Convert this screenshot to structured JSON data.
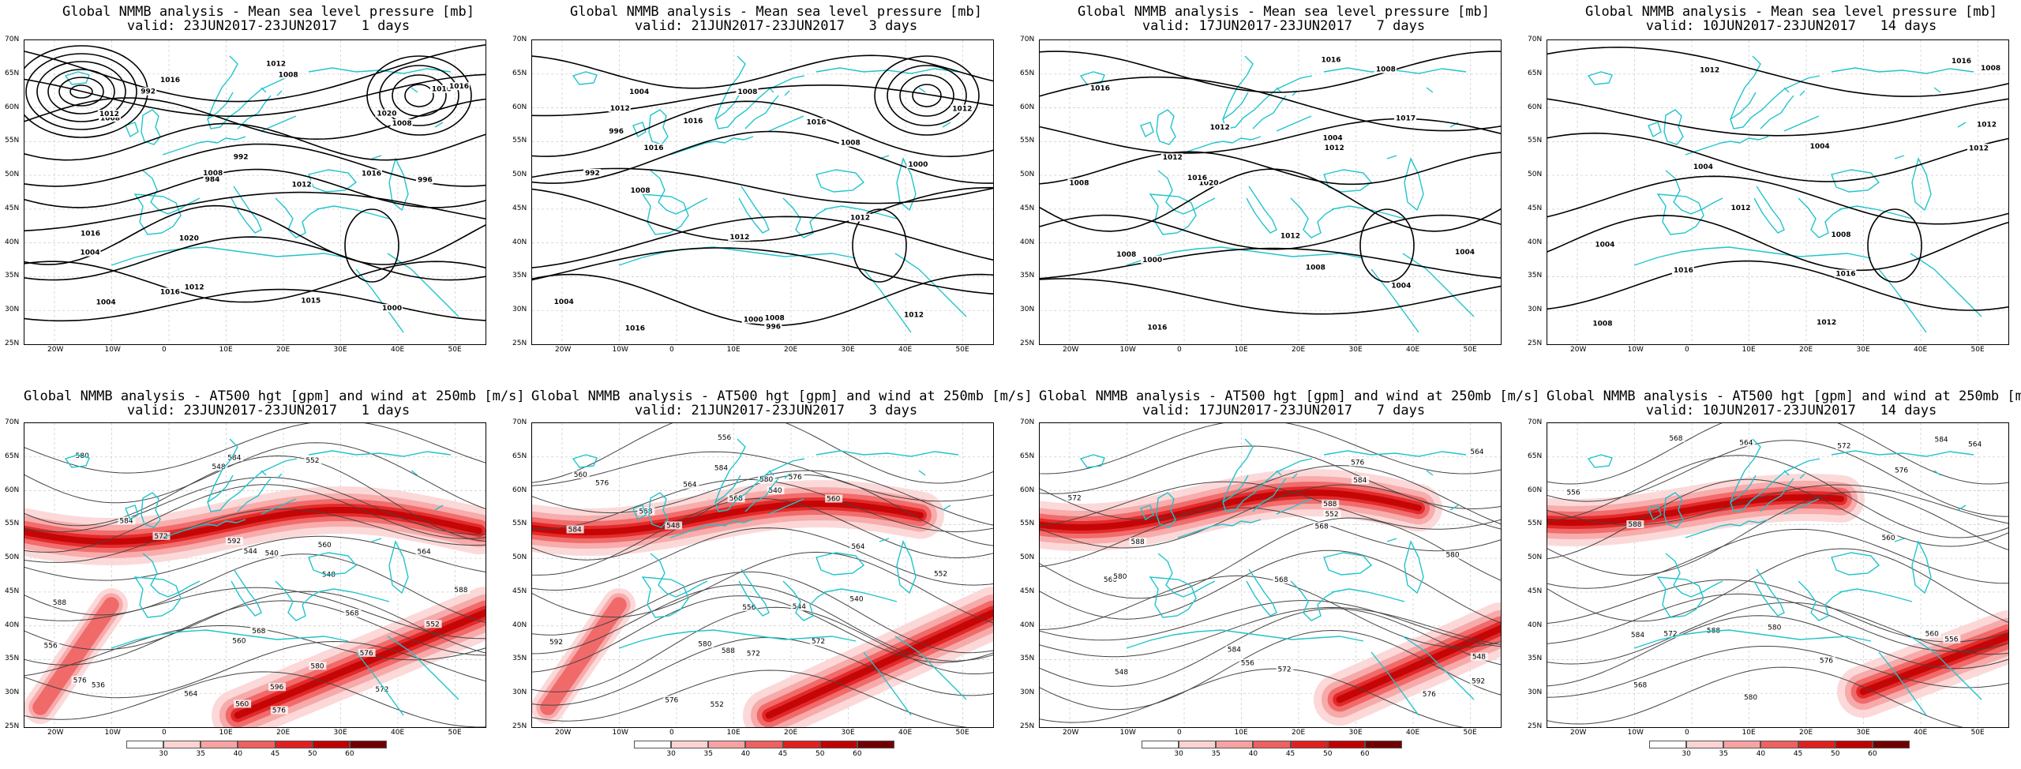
{
  "top_title": "Global NMMB analysis - Mean sea level pressure [mb]",
  "bottom_title": "Global NMMB analysis - AT500 hgt [gpm] and wind at 250mb [m/s]",
  "periods": [
    {
      "valid": "valid: 23JUN2017-23JUN2017   1 days"
    },
    {
      "valid": "valid: 21JUN2017-23JUN2017   3 days"
    },
    {
      "valid": "valid: 17JUN2017-23JUN2017   7 days"
    },
    {
      "valid": "valid: 10JUN2017-23JUN2017   14 days"
    }
  ],
  "lat_ticks": [
    "70N",
    "65N",
    "60N",
    "55N",
    "50N",
    "45N",
    "40N",
    "35N",
    "30N",
    "25N"
  ],
  "lon_ticks": [
    "20W",
    "10W",
    "0",
    "10E",
    "20E",
    "30E",
    "40E",
    "50E"
  ],
  "colorbar": {
    "labels": [
      "30",
      "35",
      "40",
      "45",
      "50",
      "60"
    ],
    "colors": [
      "#ffffff",
      "#fcd2d2",
      "#f7a3a3",
      "#f06060",
      "#e02020",
      "#c00000",
      "#700000"
    ]
  },
  "colors": {
    "coast": "#20c4cc",
    "contour": "#000000",
    "z500": "#444444",
    "wind": "#e02020"
  },
  "mslp_labels": [
    [
      "992",
      "996",
      "984",
      "1000",
      "1004",
      "1008",
      "1012",
      "1016",
      "1020",
      "1016",
      "1020",
      "1016",
      "1012",
      "1016",
      "1012",
      "1008",
      "1004",
      "1008",
      "1012",
      "1015",
      "1016",
      "1008",
      "1016",
      "992"
    ],
    [
      "996",
      "1000",
      "1004",
      "1008",
      "1012",
      "1016",
      "1016",
      "1016",
      "1012",
      "1012",
      "1008",
      "1012",
      "1008",
      "992",
      "996",
      "1000",
      "1004",
      "1016",
      "1008",
      "1012"
    ],
    [
      "1004",
      "1008",
      "1012",
      "1016",
      "1020",
      "1016",
      "1016",
      "1016",
      "1012",
      "1012",
      "1008",
      "1004",
      "1008",
      "1000",
      "1004",
      "1008",
      "1012",
      "1017"
    ],
    [
      "1004",
      "1012",
      "1016",
      "1016",
      "1012",
      "1012",
      "1016",
      "1012",
      "1008",
      "1004",
      "1008",
      "1004",
      "1008",
      "1012"
    ]
  ],
  "z500_labels": [
    [
      "552",
      "548",
      "544",
      "556",
      "560",
      "564",
      "568",
      "572",
      "576",
      "580",
      "584",
      "588",
      "592",
      "596",
      "540",
      "536",
      "548",
      "552",
      "560",
      "564",
      "568",
      "572",
      "576",
      "580",
      "584",
      "588",
      "560",
      "576"
    ],
    [
      "552",
      "540",
      "556",
      "560",
      "564",
      "568",
      "572",
      "576",
      "580",
      "584",
      "588",
      "592",
      "540",
      "544",
      "548",
      "552",
      "556",
      "560",
      "564",
      "568",
      "572",
      "576",
      "580",
      "584",
      "576"
    ],
    [
      "548",
      "552",
      "556",
      "560",
      "564",
      "568",
      "572",
      "576",
      "580",
      "584",
      "588",
      "592",
      "548",
      "568",
      "572",
      "576",
      "580",
      "584",
      "588"
    ],
    [
      "556",
      "560",
      "564",
      "568",
      "572",
      "576",
      "580",
      "584",
      "588",
      "556",
      "560",
      "564",
      "568",
      "572",
      "576",
      "580",
      "584",
      "588"
    ]
  ]
}
